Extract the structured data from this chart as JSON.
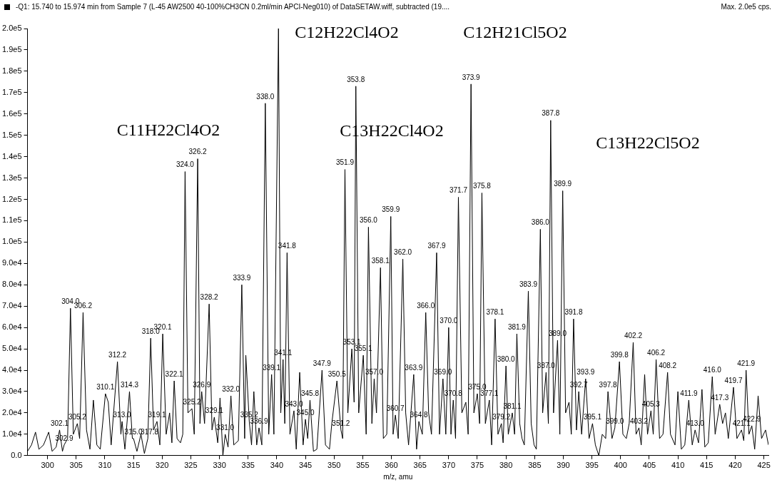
{
  "chart_data": {
    "type": "line",
    "title": "-Q1: 15.740 to 15.974 min from Sample 7 (L-45 AW2500 40-100%CH3CN 0.2ml/min APCI-Neg010) of DataSETAW.wiff, subtracted (19....",
    "subtitle": "Max. 2.0e5 cps.",
    "xlabel": "m/z, amu",
    "grid": false,
    "legend": false,
    "marker": "none",
    "xlim": [
      296.5,
      425.8
    ],
    "xticks": [
      300,
      305,
      310,
      315,
      320,
      325,
      330,
      335,
      340,
      345,
      350,
      355,
      360,
      365,
      370,
      375,
      380,
      385,
      390,
      395,
      400,
      405,
      410,
      415,
      420,
      425
    ],
    "ylim": [
      0,
      200000
    ],
    "yticks": [
      {
        "value": 0,
        "label": "0.0"
      },
      {
        "value": 10000,
        "label": "1.0e4"
      },
      {
        "value": 20000,
        "label": "2.0e4"
      },
      {
        "value": 30000,
        "label": "3.0e4"
      },
      {
        "value": 40000,
        "label": "4.0e4"
      },
      {
        "value": 50000,
        "label": "5.0e4"
      },
      {
        "value": 60000,
        "label": "6.0e4"
      },
      {
        "value": 70000,
        "label": "7.0e4"
      },
      {
        "value": 80000,
        "label": "8.0e4"
      },
      {
        "value": 90000,
        "label": "9.0e4"
      },
      {
        "value": 100000,
        "label": "1.0e5"
      },
      {
        "value": 110000,
        "label": "1.1e5"
      },
      {
        "value": 120000,
        "label": "1.2e5"
      },
      {
        "value": 130000,
        "label": "1.3e5"
      },
      {
        "value": 140000,
        "label": "1.4e5"
      },
      {
        "value": 150000,
        "label": "1.5e5"
      },
      {
        "value": 160000,
        "label": "1.6e5"
      },
      {
        "value": 170000,
        "label": "1.7e5"
      },
      {
        "value": 180000,
        "label": "1.8e5"
      },
      {
        "value": 190000,
        "label": "1.9e5"
      },
      {
        "value": 200000,
        "label": "2.0e5"
      }
    ],
    "series": [
      {
        "color": "#000000",
        "x": [
          296.5,
          297.2,
          297.9,
          298.5,
          299.3,
          300.2,
          300.8,
          301.5,
          302.1,
          302.6,
          302.9,
          303.5,
          304.0,
          304.5,
          305.2,
          305.6,
          306.2,
          306.8,
          307.4,
          308.0,
          308.6,
          309.2,
          310.1,
          310.6,
          311.1,
          312.2,
          312.8,
          313.0,
          313.5,
          314.3,
          314.8,
          315.0,
          315.6,
          316.3,
          316.9,
          317.5,
          318.0,
          318.5,
          319.1,
          319.6,
          320.1,
          320.7,
          321.3,
          321.7,
          322.1,
          322.6,
          323.2,
          323.6,
          324.0,
          324.5,
          325.2,
          325.6,
          326.2,
          326.6,
          326.9,
          327.4,
          328.2,
          328.7,
          329.1,
          329.7,
          330.1,
          330.6,
          331.0,
          331.5,
          332.0,
          332.5,
          333.3,
          333.9,
          334.4,
          334.6,
          335.2,
          335.6,
          336.0,
          336.5,
          336.9,
          337.4,
          338.0,
          338.6,
          339.1,
          339.5,
          340.3,
          340.7,
          341.1,
          341.4,
          341.8,
          342.3,
          343.0,
          343.4,
          344.0,
          344.6,
          345.0,
          345.4,
          345.8,
          346.4,
          347.0,
          347.9,
          348.5,
          349.2,
          349.6,
          350.5,
          351.2,
          351.5,
          351.9,
          352.4,
          353.1,
          353.5,
          353.8,
          354.3,
          355.1,
          355.6,
          356.0,
          356.6,
          357.0,
          357.4,
          358.1,
          358.6,
          359.2,
          359.9,
          360.3,
          360.7,
          361.2,
          362.0,
          362.5,
          363.0,
          363.9,
          364.4,
          364.8,
          365.4,
          366.0,
          366.5,
          367.0,
          367.9,
          368.4,
          369.0,
          369.5,
          370.0,
          370.4,
          370.8,
          371.2,
          371.7,
          372.3,
          373.0,
          373.4,
          373.9,
          374.4,
          375.0,
          375.4,
          375.8,
          376.4,
          377.1,
          377.5,
          378.1,
          378.6,
          379.2,
          379.5,
          380.0,
          380.4,
          381.1,
          381.5,
          381.9,
          382.4,
          382.8,
          383.2,
          383.9,
          384.4,
          384.9,
          385.3,
          386.0,
          386.4,
          387.0,
          387.4,
          387.8,
          388.3,
          389.0,
          389.4,
          389.9,
          390.4,
          391.0,
          391.4,
          391.8,
          392.3,
          392.7,
          393.2,
          393.9,
          394.5,
          395.1,
          395.6,
          396.2,
          396.8,
          397.4,
          397.8,
          398.5,
          399.0,
          399.8,
          400.4,
          401.0,
          401.5,
          402.2,
          402.7,
          403.2,
          403.6,
          404.2,
          404.7,
          405.3,
          405.7,
          406.2,
          406.8,
          407.4,
          408.2,
          408.7,
          409.5,
          410.0,
          410.6,
          411.2,
          411.9,
          412.5,
          413.0,
          413.6,
          414.2,
          414.7,
          415.3,
          416.0,
          416.5,
          417.3,
          417.8,
          418.3,
          418.8,
          419.7,
          420.3,
          421.1,
          421.5,
          421.9,
          422.4,
          422.9,
          423.4,
          424.0,
          424.6,
          425.3,
          425.8
        ],
        "values": [
          2000,
          5000,
          11000,
          3000,
          5000,
          11000,
          2000,
          4000,
          12000,
          2000,
          5000,
          8000,
          69000,
          10000,
          15000,
          8000,
          67000,
          12000,
          3000,
          26000,
          5000,
          3000,
          29000,
          25000,
          5000,
          44000,
          10000,
          16000,
          3000,
          30000,
          8000,
          8000,
          2000,
          10000,
          1000,
          8000,
          55000,
          12000,
          16000,
          5000,
          57000,
          10000,
          20000,
          6000,
          35000,
          8000,
          6000,
          10000,
          133000,
          20000,
          22000,
          10000,
          139000,
          15000,
          30000,
          15000,
          71000,
          12000,
          18000,
          6000,
          27000,
          0,
          10000,
          4000,
          28000,
          5000,
          7000,
          80000,
          8000,
          47000,
          16000,
          5000,
          30000,
          5000,
          13000,
          5000,
          165000,
          10000,
          38000,
          10000,
          200000,
          20000,
          45000,
          15000,
          95000,
          10000,
          21000,
          3000,
          39000,
          5000,
          17000,
          8000,
          26000,
          2000,
          3000,
          40000,
          5000,
          3000,
          15000,
          35000,
          12000,
          8000,
          134000,
          20000,
          50000,
          25000,
          173000,
          20000,
          47000,
          10000,
          107000,
          15000,
          36000,
          20000,
          88000,
          8000,
          10000,
          112000,
          10000,
          19000,
          8000,
          92000,
          20000,
          5000,
          38000,
          3000,
          16000,
          10000,
          67000,
          20000,
          10000,
          95000,
          10000,
          36000,
          10000,
          60000,
          10000,
          26000,
          8000,
          121000,
          20000,
          25000,
          10000,
          174000,
          20000,
          29000,
          15000,
          123000,
          15000,
          26000,
          5000,
          64000,
          10000,
          15000,
          6000,
          42000,
          10000,
          20000,
          10000,
          57000,
          15000,
          8000,
          5000,
          77000,
          15000,
          5000,
          3000,
          106000,
          20000,
          39000,
          15000,
          157000,
          20000,
          54000,
          10000,
          124000,
          20000,
          25000,
          10000,
          64000,
          12000,
          30000,
          10000,
          36000,
          8000,
          15000,
          5000,
          0,
          10000,
          8000,
          30000,
          8000,
          13000,
          44000,
          10000,
          8000,
          15000,
          53000,
          10000,
          13000,
          5000,
          38000,
          10000,
          21000,
          10000,
          45000,
          8000,
          10000,
          39000,
          10000,
          5000,
          30000,
          3000,
          5000,
          26000,
          5000,
          12000,
          6000,
          31000,
          4000,
          6000,
          37000,
          10000,
          24000,
          15000,
          20000,
          8000,
          32000,
          8000,
          12000,
          7000,
          40000,
          10000,
          14000,
          3000,
          28000,
          8000,
          12000,
          5000
        ]
      }
    ],
    "annotations": [
      "C11H22Cl4O2",
      "C12H22Cl4O2",
      "C13H22Cl4O2",
      "C12H21Cl5O2",
      "C13H22Cl5O2",
      {
        "text": "302.1",
        "x": 302.1,
        "y": 12000
      },
      {
        "text": "302.9",
        "x": 302.9,
        "y": 5000
      },
      {
        "text": "304.0",
        "x": 304.0,
        "y": 69000
      },
      {
        "text": "305.2",
        "x": 305.2,
        "y": 15000
      },
      {
        "text": "306.2",
        "x": 306.2,
        "y": 67000
      },
      {
        "text": "310.1",
        "x": 310.1,
        "y": 29000
      },
      {
        "text": "312.2",
        "x": 312.2,
        "y": 44000
      },
      {
        "text": "313.0",
        "x": 313.0,
        "y": 16000
      },
      {
        "text": "314.3",
        "x": 314.3,
        "y": 30000
      },
      {
        "text": "315.0",
        "x": 315.0,
        "y": 8000
      },
      {
        "text": "317.8",
        "x": 317.8,
        "y": 8000
      },
      {
        "text": "318.0",
        "x": 318.0,
        "y": 55000
      },
      {
        "text": "319.1",
        "x": 319.1,
        "y": 16000
      },
      {
        "text": "320.1",
        "x": 320.1,
        "y": 57000
      },
      {
        "text": "322.1",
        "x": 322.1,
        "y": 35000
      },
      {
        "text": "324.0",
        "x": 324.0,
        "y": 133000
      },
      {
        "text": "325.2",
        "x": 325.2,
        "y": 22000
      },
      {
        "text": "326.2",
        "x": 326.2,
        "y": 139000
      },
      {
        "text": "326.9",
        "x": 326.9,
        "y": 30000
      },
      {
        "text": "328.2",
        "x": 328.2,
        "y": 71000
      },
      {
        "text": "329.1",
        "x": 329.1,
        "y": 18000
      },
      {
        "text": "331.0",
        "x": 331.0,
        "y": 10000
      },
      {
        "text": "332.0",
        "x": 332.0,
        "y": 28000
      },
      {
        "text": "333.9",
        "x": 333.9,
        "y": 80000
      },
      {
        "text": "335.2",
        "x": 335.2,
        "y": 16000
      },
      {
        "text": "336.9",
        "x": 336.9,
        "y": 13000
      },
      {
        "text": "338.0",
        "x": 338.0,
        "y": 165000
      },
      {
        "text": "339.1",
        "x": 339.1,
        "y": 38000
      },
      {
        "text": "341.1",
        "x": 341.1,
        "y": 45000
      },
      {
        "text": "341.8",
        "x": 341.8,
        "y": 95000
      },
      {
        "text": "343.0",
        "x": 343.0,
        "y": 21000
      },
      {
        "text": "345.0",
        "x": 345.0,
        "y": 17000
      },
      {
        "text": "345.8",
        "x": 345.8,
        "y": 26000
      },
      {
        "text": "347.9",
        "x": 347.9,
        "y": 40000
      },
      {
        "text": "350.5",
        "x": 350.5,
        "y": 35000
      },
      {
        "text": "351.2",
        "x": 351.2,
        "y": 12000
      },
      {
        "text": "351.9",
        "x": 351.9,
        "y": 134000
      },
      {
        "text": "353.1",
        "x": 353.1,
        "y": 50000
      },
      {
        "text": "353.8",
        "x": 353.8,
        "y": 173000
      },
      {
        "text": "355.1",
        "x": 355.1,
        "y": 47000
      },
      {
        "text": "356.0",
        "x": 356.0,
        "y": 107000
      },
      {
        "text": "357.0",
        "x": 357.0,
        "y": 36000
      },
      {
        "text": "358.1",
        "x": 358.1,
        "y": 88000
      },
      {
        "text": "359.9",
        "x": 359.9,
        "y": 112000
      },
      {
        "text": "360.7",
        "x": 360.7,
        "y": 19000
      },
      {
        "text": "362.0",
        "x": 362.0,
        "y": 92000
      },
      {
        "text": "363.9",
        "x": 363.9,
        "y": 38000
      },
      {
        "text": "364.8",
        "x": 364.8,
        "y": 16000
      },
      {
        "text": "366.0",
        "x": 366.0,
        "y": 67000
      },
      {
        "text": "367.9",
        "x": 367.9,
        "y": 95000
      },
      {
        "text": "369.0",
        "x": 369.0,
        "y": 36000
      },
      {
        "text": "370.0",
        "x": 370.0,
        "y": 60000
      },
      {
        "text": "370.8",
        "x": 370.8,
        "y": 26000
      },
      {
        "text": "371.7",
        "x": 371.7,
        "y": 121000
      },
      {
        "text": "373.9",
        "x": 373.9,
        "y": 174000
      },
      {
        "text": "375.0",
        "x": 375.0,
        "y": 29000
      },
      {
        "text": "375.8",
        "x": 375.8,
        "y": 123000
      },
      {
        "text": "377.1",
        "x": 377.1,
        "y": 26000
      },
      {
        "text": "378.1",
        "x": 378.1,
        "y": 64000
      },
      {
        "text": "379.2",
        "x": 379.2,
        "y": 15000
      },
      {
        "text": "380.0",
        "x": 380.0,
        "y": 42000
      },
      {
        "text": "381.1",
        "x": 381.1,
        "y": 20000
      },
      {
        "text": "381.9",
        "x": 381.9,
        "y": 57000
      },
      {
        "text": "383.9",
        "x": 383.9,
        "y": 77000
      },
      {
        "text": "386.0",
        "x": 386.0,
        "y": 106000
      },
      {
        "text": "387.0",
        "x": 387.0,
        "y": 39000
      },
      {
        "text": "387.8",
        "x": 387.8,
        "y": 157000
      },
      {
        "text": "389.0",
        "x": 389.0,
        "y": 54000
      },
      {
        "text": "389.9",
        "x": 389.9,
        "y": 124000
      },
      {
        "text": "391.8",
        "x": 391.8,
        "y": 64000
      },
      {
        "text": "392.7",
        "x": 392.7,
        "y": 30000
      },
      {
        "text": "393.9",
        "x": 393.9,
        "y": 36000
      },
      {
        "text": "395.1",
        "x": 395.1,
        "y": 15000
      },
      {
        "text": "397.8",
        "x": 397.8,
        "y": 30000
      },
      {
        "text": "399.0",
        "x": 399.0,
        "y": 13000
      },
      {
        "text": "399.8",
        "x": 399.8,
        "y": 44000
      },
      {
        "text": "402.2",
        "x": 402.2,
        "y": 53000
      },
      {
        "text": "403.2",
        "x": 403.2,
        "y": 13000
      },
      {
        "text": "405.3",
        "x": 405.3,
        "y": 21000
      },
      {
        "text": "406.2",
        "x": 406.2,
        "y": 45000
      },
      {
        "text": "408.2",
        "x": 408.2,
        "y": 39000
      },
      {
        "text": "411.9",
        "x": 411.9,
        "y": 26000
      },
      {
        "text": "413.0",
        "x": 413.0,
        "y": 12000
      },
      {
        "text": "416.0",
        "x": 416.0,
        "y": 37000
      },
      {
        "text": "417.3",
        "x": 417.3,
        "y": 24000
      },
      {
        "text": "419.7",
        "x": 419.7,
        "y": 32000
      },
      {
        "text": "421.1",
        "x": 421.1,
        "y": 12000
      },
      {
        "text": "421.9",
        "x": 421.9,
        "y": 40000
      },
      {
        "text": "422.9",
        "x": 422.9,
        "y": 14000
      }
    ]
  }
}
